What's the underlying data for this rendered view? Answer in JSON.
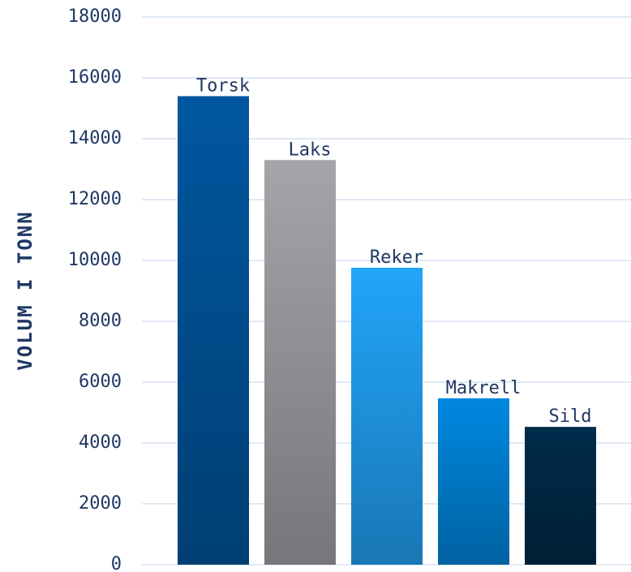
{
  "chart_data": {
    "type": "bar",
    "y_label": "VOLUM I TONN",
    "categories": [
      "Torsk",
      "Laks",
      "Reker",
      "Makrell",
      "Sild"
    ],
    "values": [
      15400,
      13300,
      9760,
      5470,
      4530
    ],
    "colors": [
      "#0057a0",
      "#a4a5a9",
      "#22a5fa",
      "#0088e0",
      "#002b4a"
    ],
    "ylim": [
      0,
      18000
    ],
    "yticks": [
      0,
      2000,
      4000,
      6000,
      8000,
      10000,
      12000,
      14000,
      16000,
      18000
    ],
    "grid": true
  }
}
